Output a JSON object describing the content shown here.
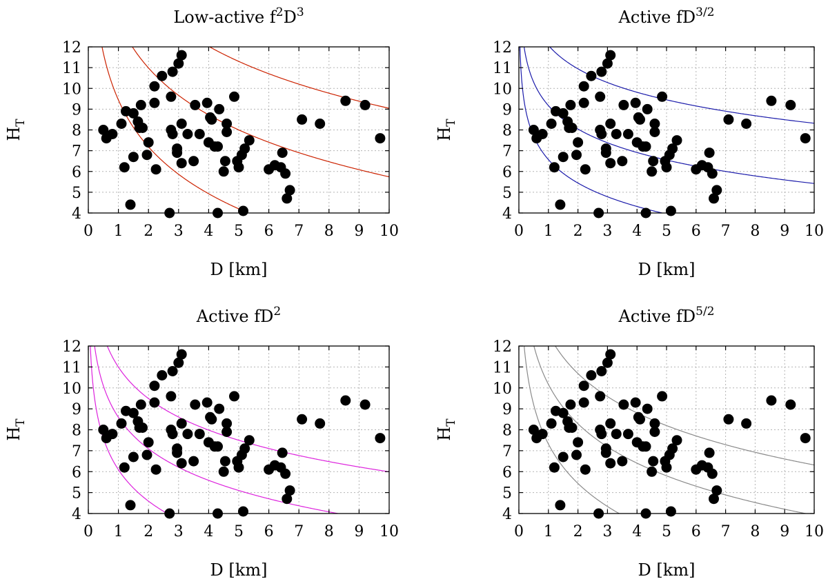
{
  "chart_data": {
    "type": "scatter",
    "shared": {
      "xlabel": "D [km]",
      "ylabel": "H",
      "ylabel_sub": "T",
      "xlim": [
        0,
        10
      ],
      "ylim": [
        4,
        12
      ],
      "xticks": [
        0,
        1,
        2,
        3,
        4,
        5,
        6,
        7,
        8,
        9,
        10
      ],
      "yticks": [
        4,
        5,
        6,
        7,
        8,
        9,
        10,
        11,
        12
      ],
      "grid": true,
      "marker_color": "#000000",
      "points": [
        [
          0.5,
          8.0
        ],
        [
          0.6,
          7.6
        ],
        [
          0.8,
          7.8
        ],
        [
          1.1,
          8.3
        ],
        [
          1.2,
          6.2
        ],
        [
          1.25,
          8.9
        ],
        [
          1.4,
          4.4
        ],
        [
          1.5,
          6.7
        ],
        [
          1.5,
          8.8
        ],
        [
          1.65,
          8.4
        ],
        [
          1.7,
          8.1
        ],
        [
          1.75,
          9.2
        ],
        [
          1.8,
          8.1
        ],
        [
          1.95,
          6.8
        ],
        [
          2.0,
          7.4
        ],
        [
          2.2,
          9.3
        ],
        [
          2.2,
          10.1
        ],
        [
          2.25,
          6.1
        ],
        [
          2.45,
          10.6
        ],
        [
          2.7,
          4.0
        ],
        [
          2.75,
          9.6
        ],
        [
          2.75,
          8.0
        ],
        [
          2.8,
          10.8
        ],
        [
          2.8,
          7.8
        ],
        [
          2.95,
          7.1
        ],
        [
          2.95,
          6.9
        ],
        [
          3.0,
          11.2
        ],
        [
          3.1,
          6.4
        ],
        [
          3.1,
          8.3
        ],
        [
          3.1,
          11.6
        ],
        [
          3.3,
          7.8
        ],
        [
          3.5,
          6.5
        ],
        [
          3.55,
          9.2
        ],
        [
          3.7,
          7.8
        ],
        [
          3.95,
          9.3
        ],
        [
          4.0,
          7.4
        ],
        [
          4.05,
          8.6
        ],
        [
          4.1,
          8.5
        ],
        [
          4.2,
          7.2
        ],
        [
          4.3,
          7.2
        ],
        [
          4.3,
          4.0
        ],
        [
          4.35,
          9.0
        ],
        [
          4.5,
          6.0
        ],
        [
          4.55,
          6.5
        ],
        [
          4.6,
          8.3
        ],
        [
          4.6,
          7.9
        ],
        [
          4.85,
          9.6
        ],
        [
          4.95,
          6.5
        ],
        [
          5.0,
          6.2
        ],
        [
          5.1,
          6.8
        ],
        [
          5.15,
          4.1
        ],
        [
          5.2,
          7.1
        ],
        [
          5.35,
          7.5
        ],
        [
          6.0,
          6.1
        ],
        [
          6.2,
          6.3
        ],
        [
          6.4,
          6.2
        ],
        [
          6.45,
          6.9
        ],
        [
          6.55,
          5.9
        ],
        [
          6.6,
          4.7
        ],
        [
          6.7,
          5.1
        ],
        [
          7.1,
          8.5
        ],
        [
          7.7,
          8.3
        ],
        [
          8.55,
          9.4
        ],
        [
          9.2,
          9.2
        ],
        [
          9.7,
          7.6
        ]
      ]
    },
    "panels": [
      {
        "title": "Low-active f",
        "title_sup1": "2",
        "title_mid": "D",
        "title_sup2": "3",
        "curve_color": "#cc2200",
        "power": 3,
        "curves_y_at_D5": [
          4.2,
          8.0,
          11.3
        ]
      },
      {
        "title": "Active fD",
        "title_sup1": "3/2",
        "title_mid": "",
        "title_sup2": "",
        "curve_color": "#1a1aaa",
        "power": 1.5,
        "curves_y_at_D5": [
          3.95,
          6.55,
          9.45
        ]
      },
      {
        "title": "Active fD",
        "title_sup1": "2",
        "title_mid": "",
        "title_sup2": "",
        "curve_color": "#dd22dd",
        "power": 2,
        "curves_y_at_D5": [
          2.6,
          5.1,
          7.5
        ]
      },
      {
        "title": "Active fD",
        "title_sup1": "5/2",
        "title_mid": "",
        "title_sup2": "",
        "curve_color": "#8a8a8a",
        "power": 2.5,
        "curves_y_at_D5": [
          2.95,
          5.8,
          8.2
        ]
      }
    ]
  }
}
